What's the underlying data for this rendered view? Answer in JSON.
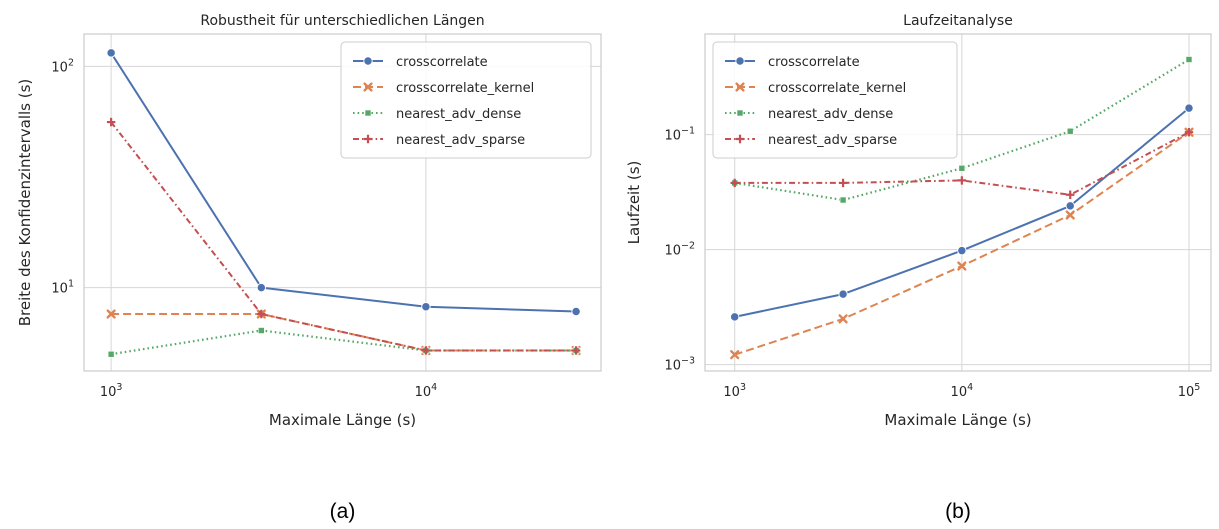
{
  "chart_data": [
    {
      "type": "line",
      "title": "Robustheit für unterschiedlichen Längen",
      "xlabel": "Maximale Länge (s)",
      "ylabel": "Breite des Konfidenzintervalls (s)",
      "xscale": "log",
      "yscale": "log",
      "xlim": [
        820,
        36000
      ],
      "ylim": [
        4.2,
        140
      ],
      "x": [
        1000,
        3000,
        10000,
        30000
      ],
      "xticks": [
        {
          "value": 1000,
          "base": "10",
          "exp": "3"
        },
        {
          "value": 10000,
          "base": "10",
          "exp": "4"
        }
      ],
      "yticks": [
        {
          "value": 10,
          "base": "10",
          "exp": "1"
        },
        {
          "value": 100,
          "base": "10",
          "exp": "2"
        }
      ],
      "grid": true,
      "legend_position": "top-right",
      "caption": "(a)",
      "series": [
        {
          "name": "crosscorrelate",
          "values": [
            115,
            10,
            8.2,
            7.8
          ],
          "color": "#4C72B0",
          "dash": "solid",
          "marker": "circle"
        },
        {
          "name": "crosscorrelate_kernel",
          "values": [
            7.6,
            7.6,
            5.2,
            5.2
          ],
          "color": "#DD8452",
          "dash": "dashed",
          "marker": "x"
        },
        {
          "name": "nearest_adv_dense",
          "values": [
            5.0,
            6.4,
            5.2,
            5.2
          ],
          "color": "#55A868",
          "dash": "dotted",
          "marker": "square"
        },
        {
          "name": "nearest_adv_sparse",
          "values": [
            56,
            7.6,
            5.2,
            5.2
          ],
          "color": "#C44E52",
          "dash": "dashdot",
          "marker": "plus"
        }
      ]
    },
    {
      "type": "line",
      "title": "Laufzeitanalyse",
      "xlabel": "Maximale Länge (s)",
      "ylabel": "Laufzeit (s)",
      "xscale": "log",
      "yscale": "log",
      "xlim": [
        740,
        125000
      ],
      "ylim": [
        0.00088,
        0.75
      ],
      "x": [
        1000,
        3000,
        10000,
        30000,
        100000
      ],
      "xticks": [
        {
          "value": 1000,
          "base": "10",
          "exp": "3"
        },
        {
          "value": 10000,
          "base": "10",
          "exp": "4"
        },
        {
          "value": 100000,
          "base": "10",
          "exp": "5"
        }
      ],
      "yticks": [
        {
          "value": 0.001,
          "base": "10",
          "exp": "−3"
        },
        {
          "value": 0.01,
          "base": "10",
          "exp": "−2"
        },
        {
          "value": 0.1,
          "base": "10",
          "exp": "−1"
        }
      ],
      "grid": true,
      "legend_position": "top-left",
      "caption": "(b)",
      "series": [
        {
          "name": "crosscorrelate",
          "values": [
            0.0026,
            0.0041,
            0.0098,
            0.024,
            0.17
          ],
          "color": "#4C72B0",
          "dash": "solid",
          "marker": "circle"
        },
        {
          "name": "crosscorrelate_kernel",
          "values": [
            0.00122,
            0.0025,
            0.0072,
            0.02,
            0.105
          ],
          "color": "#DD8452",
          "dash": "dashed",
          "marker": "x"
        },
        {
          "name": "nearest_adv_dense",
          "values": [
            0.038,
            0.027,
            0.051,
            0.107,
            0.45
          ],
          "color": "#55A868",
          "dash": "dotted",
          "marker": "square"
        },
        {
          "name": "nearest_adv_sparse",
          "values": [
            0.038,
            0.038,
            0.04,
            0.03,
            0.105
          ],
          "color": "#C44E52",
          "dash": "dashdot",
          "marker": "plus"
        }
      ]
    }
  ]
}
